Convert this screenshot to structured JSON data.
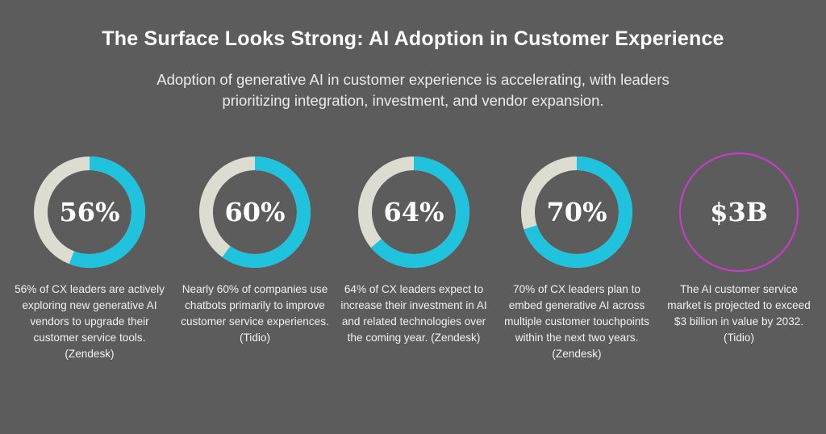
{
  "header": {
    "title": "The Surface Looks Strong: AI Adoption in Customer Experience",
    "subtitle": "Adoption of generative AI in customer experience is accelerating, with leaders prioritizing integration, investment, and vendor expansion."
  },
  "colors": {
    "background": "#5c5c5c",
    "ring_fill": "#1fc3de",
    "ring_track": "#dcdcd0",
    "ring_money": "#c83cc8"
  },
  "stats": [
    {
      "value": "56%",
      "percent": 56,
      "desc": "56% of CX leaders are actively exploring new generative AI vendors to upgrade their customer service tools. (Zendesk)"
    },
    {
      "value": "60%",
      "percent": 60,
      "desc": "Nearly 60% of companies use chatbots primarily to improve customer service experiences. (Tidio)"
    },
    {
      "value": "64%",
      "percent": 64,
      "desc": "64% of CX leaders expect to increase their investment in AI and related technologies over the coming year. (Zendesk)"
    },
    {
      "value": "70%",
      "percent": 70,
      "desc": "70% of CX leaders plan to embed generative AI across multiple customer touchpoints within the next two years. (Zendesk)"
    },
    {
      "value": "$3B",
      "percent": null,
      "desc": "The AI customer service market is projected to exceed $3 billion in value by 2032. (Tidio)"
    }
  ],
  "chart_data": {
    "type": "donut",
    "categories": [
      "56%",
      "60%",
      "64%",
      "70%",
      "$3B"
    ],
    "values": [
      56,
      60,
      64,
      70,
      null
    ]
  }
}
